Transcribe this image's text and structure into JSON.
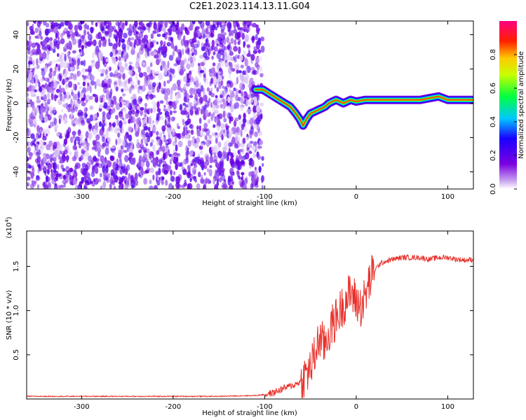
{
  "title": "C2E1.2023.114.13.11.G04",
  "chart_data": [
    {
      "type": "heatmap",
      "xlabel": "Height of straight line (km)",
      "ylabel": "Frequency (Hz)",
      "xlim": [
        -360,
        128
      ],
      "ylim": [
        -50,
        48
      ],
      "xticks": [
        -300,
        -200,
        -100,
        0,
        100
      ],
      "yticks": [
        -40,
        -20,
        0,
        20,
        40
      ],
      "colorbar": {
        "label": "Normalized spectral amplitude",
        "range": [
          0.0,
          1.0
        ],
        "ticks": [
          0.0,
          0.2,
          0.4,
          0.6,
          0.8
        ],
        "colors": [
          "#c8a2f0",
          "#7b00e0",
          "#1a00ff",
          "#00c8ff",
          "#00ff40",
          "#c8ff00",
          "#ffc800",
          "#ff2000",
          "#ff0080"
        ]
      },
      "noise_region": {
        "x": [
          -360,
          -102
        ],
        "y": [
          -50,
          48
        ],
        "amplitude": 0.1
      },
      "ridge": {
        "x": [
          -110,
          -102,
          -96,
          -90,
          -84,
          -78,
          -72,
          -66,
          -62,
          -58,
          -54,
          -50,
          -46,
          -42,
          -38,
          -34,
          -30,
          -26,
          -22,
          -18,
          -14,
          -10,
          -6,
          0,
          10,
          20,
          30,
          40,
          50,
          60,
          70,
          80,
          90,
          100,
          110,
          128
        ],
        "y": [
          8,
          8,
          6,
          4,
          2,
          0,
          -2,
          -6,
          -9,
          -13,
          -9,
          -6,
          -5,
          -4,
          -3,
          -2,
          0,
          1,
          2,
          1,
          0,
          1,
          2,
          1,
          2,
          2,
          2,
          2,
          2,
          2,
          2,
          3,
          4,
          2,
          2,
          2
        ]
      }
    },
    {
      "type": "line",
      "xlabel": "Height of straight line (km)",
      "ylabel": "SNR (10 * v/v)",
      "yscale_label": "(x10",
      "yscale_exp": "4",
      "ylabel_unit_close": ")",
      "xlim": [
        -360,
        128
      ],
      "ylim": [
        0,
        1.9
      ],
      "xticks": [
        -300,
        -200,
        -100,
        0,
        100
      ],
      "yticks": [
        0.5,
        1.0,
        1.5
      ],
      "series": [
        {
          "color": "#e8302a",
          "x": [
            -360,
            -300,
            -250,
            -200,
            -150,
            -110,
            -100,
            -90,
            -80,
            -70,
            -60,
            -50,
            -45,
            -40,
            -35,
            -30,
            -25,
            -20,
            -15,
            -10,
            -5,
            0,
            5,
            10,
            15,
            20,
            25,
            30,
            40,
            50,
            60,
            70,
            80,
            90,
            100,
            110,
            120,
            128
          ],
          "y": [
            0.03,
            0.03,
            0.03,
            0.03,
            0.03,
            0.04,
            0.05,
            0.07,
            0.12,
            0.15,
            0.2,
            0.35,
            0.5,
            0.7,
            0.6,
            0.75,
            0.85,
            0.95,
            1.05,
            1.15,
            1.2,
            1.1,
            1.05,
            1.15,
            1.35,
            1.45,
            1.52,
            1.55,
            1.58,
            1.6,
            1.6,
            1.6,
            1.58,
            1.6,
            1.6,
            1.58,
            1.57,
            1.58
          ]
        }
      ]
    }
  ]
}
